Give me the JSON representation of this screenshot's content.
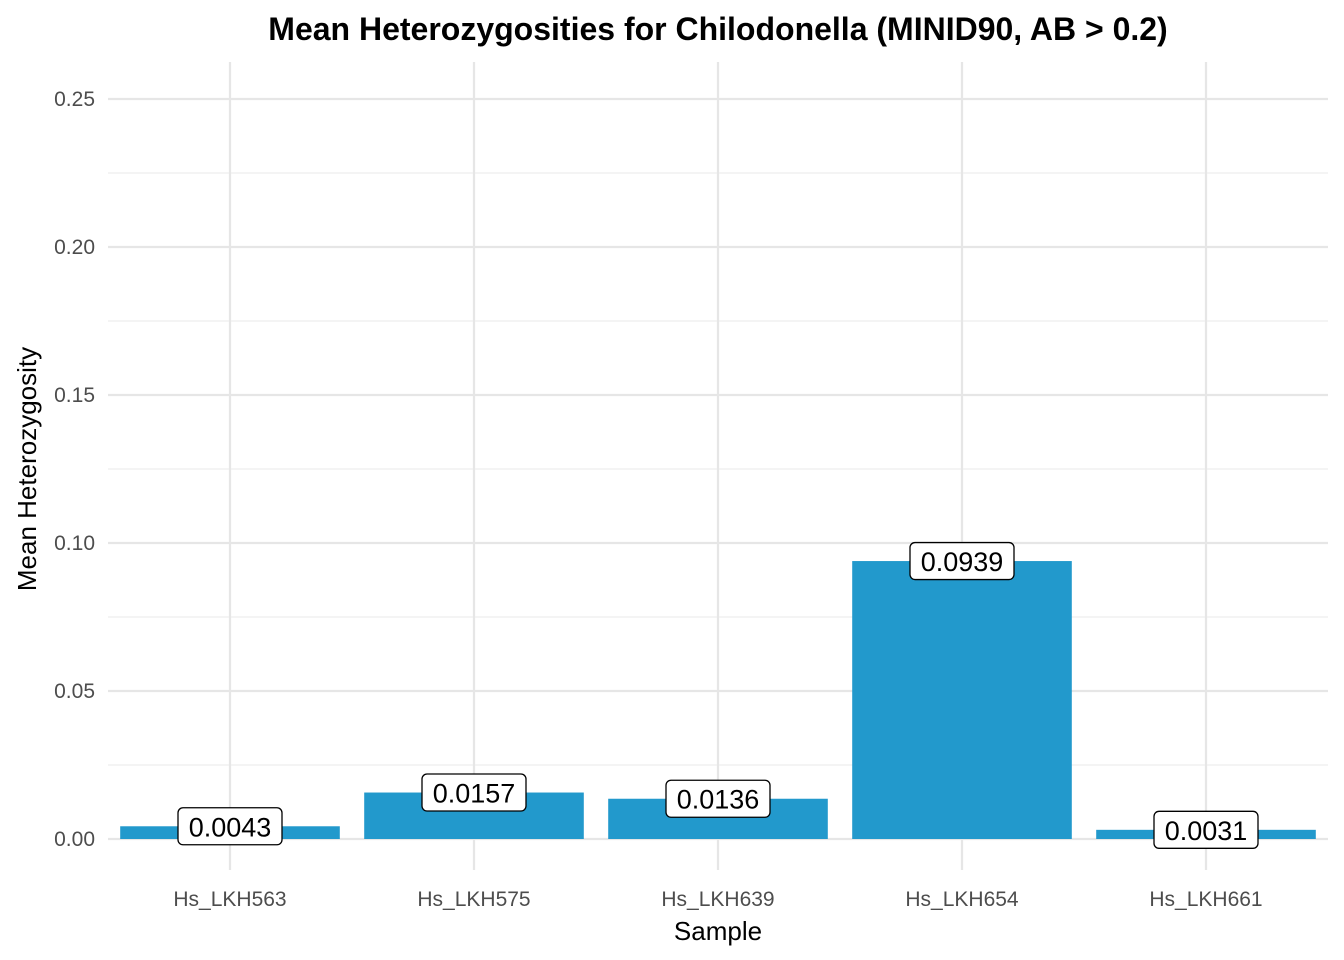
{
  "chart_data": {
    "type": "bar",
    "title": "Mean Heterozygosities for Chilodonella (MINID90, AB > 0.2)",
    "xlabel": "Sample",
    "ylabel": "Mean Heterozygosity",
    "categories": [
      "Hs_LKH563",
      "Hs_LKH575",
      "Hs_LKH639",
      "Hs_LKH654",
      "Hs_LKH661"
    ],
    "values": [
      0.0043,
      0.0157,
      0.0136,
      0.0939,
      0.0031
    ],
    "data_labels": [
      "0.0043",
      "0.0157",
      "0.0136",
      "0.0939",
      "0.0031"
    ],
    "ylim": [
      0,
      0.25
    ],
    "yticks": [
      0,
      0.05,
      0.1,
      0.15,
      0.2,
      0.25
    ],
    "ytick_labels": [
      "0.00",
      "0.05",
      "0.10",
      "0.15",
      "0.20",
      "0.25"
    ],
    "grid": true,
    "legend": "none",
    "bar_color": "#2299cc"
  }
}
